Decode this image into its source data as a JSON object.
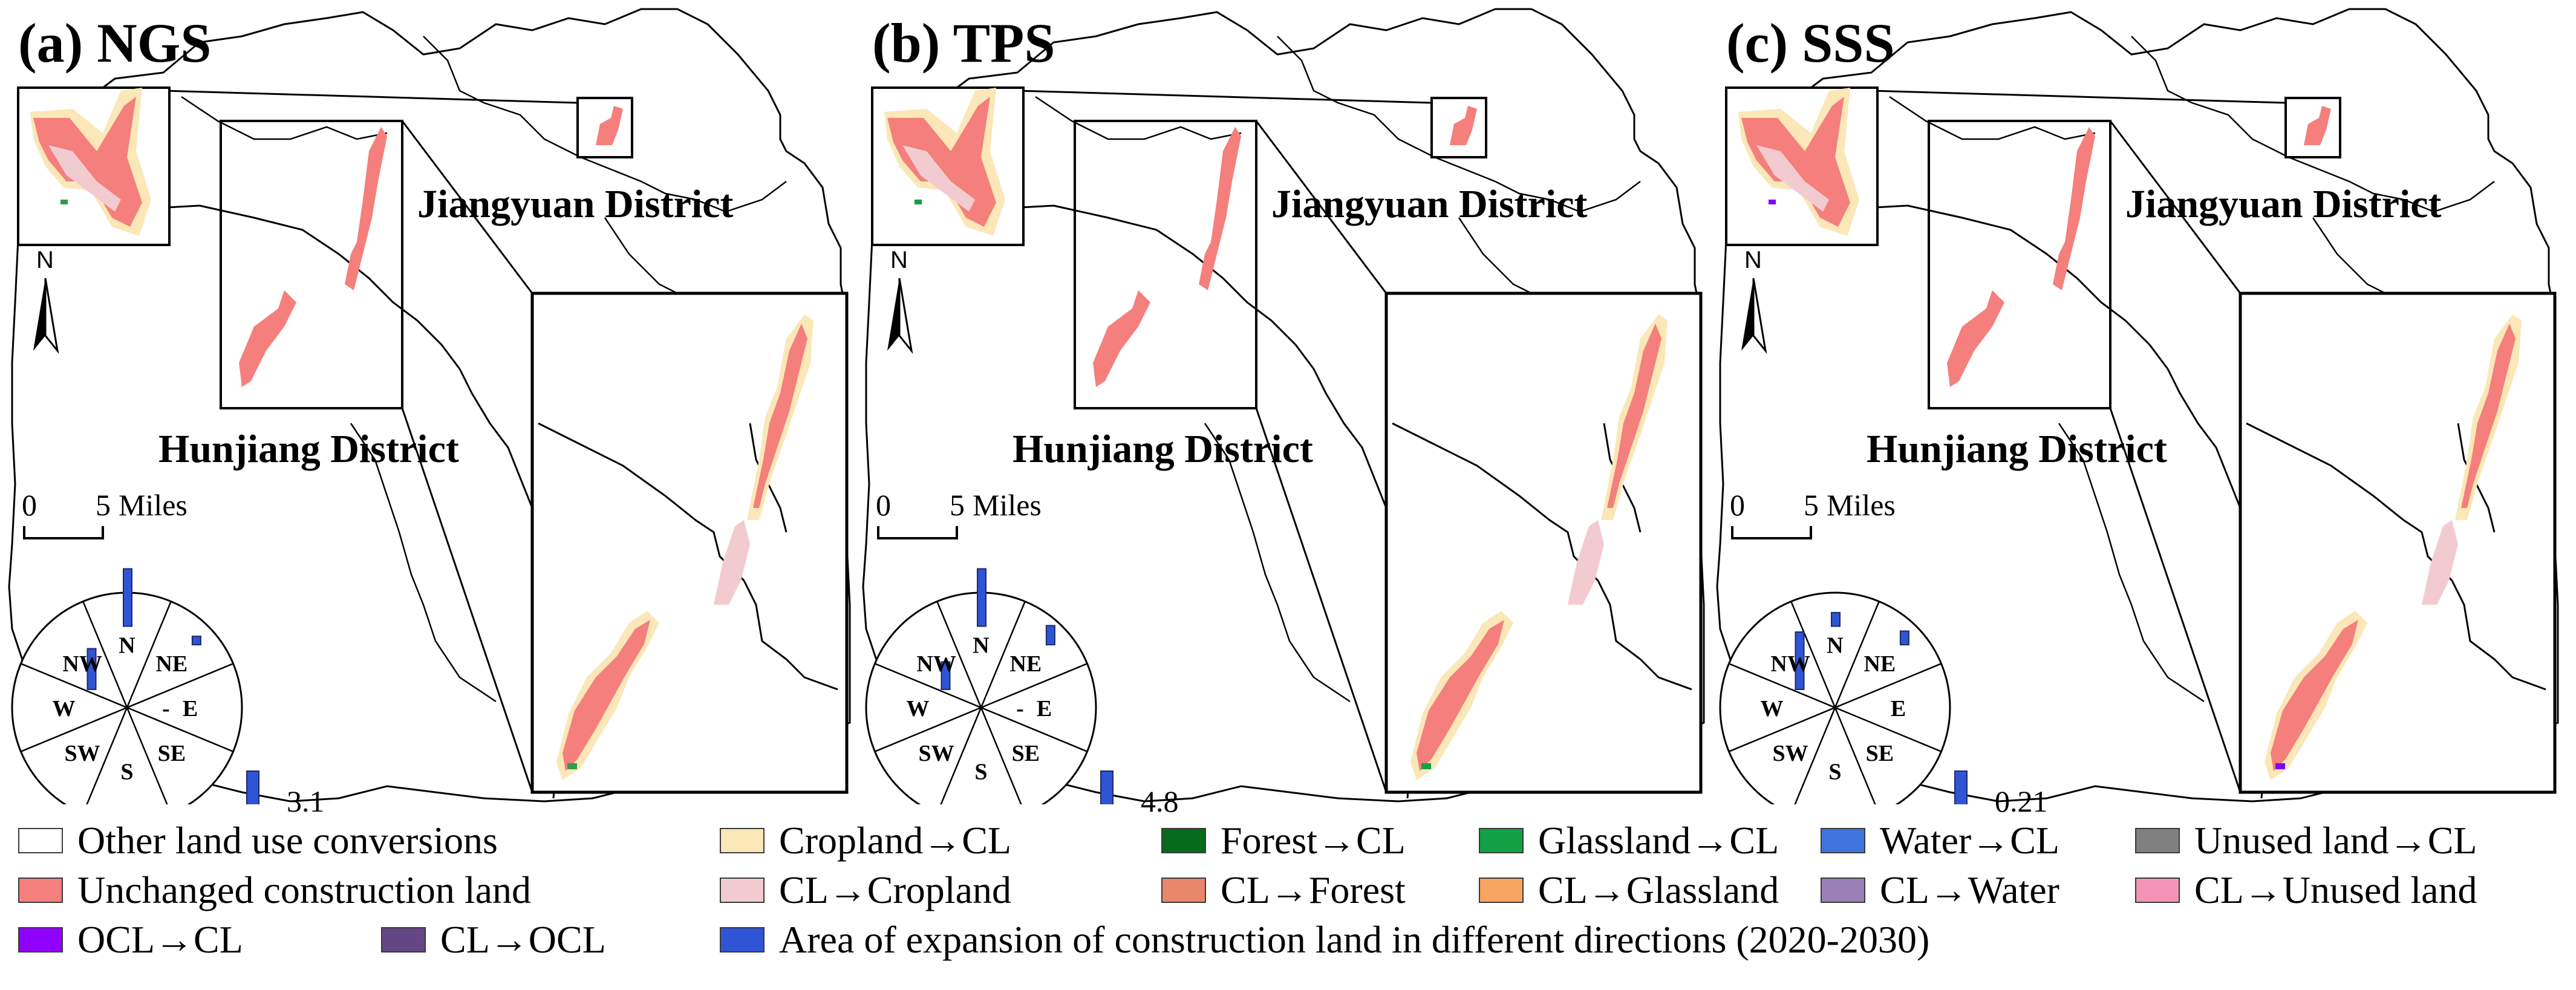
{
  "panels": [
    {
      "title": "(a) NGS",
      "district_top": "Jiangyuan District",
      "district_bottom": "Hunjiang District",
      "north_label": "N",
      "scale": {
        "zero": "0",
        "value": "5",
        "unit": "Miles"
      },
      "max_bar_label": "3.1",
      "rose_values": {
        "N": 3.1,
        "NE": 0.4,
        "E": 0.0,
        "SE": 0.0,
        "S": 0.0,
        "SW": 0.0,
        "W": 2.2,
        "NW": 0.0
      },
      "rose_markers": {
        "E": "-"
      },
      "patch_colors": {
        "unchanged": "#f47f7c",
        "new_cropland": "#fbe7b7",
        "to_cropland": "#f2cbd1",
        "accent": "#2f9e4a"
      }
    },
    {
      "title": "(b) TPS",
      "district_top": "Jiangyuan District",
      "district_bottom": "Hunjiang District",
      "north_label": "N",
      "scale": {
        "zero": "0",
        "value": "5",
        "unit": "Miles"
      },
      "max_bar_label": "4.8",
      "rose_values": {
        "N": 4.8,
        "NE": 1.6,
        "E": 0.0,
        "SE": 0.0,
        "S": 0.0,
        "SW": 0.0,
        "W": 2.3,
        "NW": 0.0
      },
      "rose_markers": {
        "E": "-"
      },
      "patch_colors": {
        "unchanged": "#f47f7c",
        "new_cropland": "#fbe7b7",
        "to_cropland": "#f2cbd1",
        "accent": "#10a244"
      }
    },
    {
      "title": "(c) SSS",
      "district_top": "Jiangyuan District",
      "district_bottom": "Hunjiang District",
      "north_label": "N",
      "scale": {
        "zero": "0",
        "value": "5",
        "unit": "Miles"
      },
      "max_bar_label": "0.21",
      "rose_values": {
        "N": 0.05,
        "NE": 0.05,
        "E": 0.0,
        "SE": 0.0,
        "S": 0.0,
        "SW": 0.0,
        "W": 0.21,
        "NW": 0.0
      },
      "rose_markers": {
        "E": ""
      },
      "patch_colors": {
        "unchanged": "#f47f7c",
        "new_cropland": "#fbe7b7",
        "to_cropland": "#f2cbd1",
        "accent": "#8000ff"
      }
    }
  ],
  "rose_directions": [
    "N",
    "NE",
    "E",
    "SE",
    "S",
    "SW",
    "W",
    "NW"
  ],
  "legend": [
    {
      "label": "Other land use conversions",
      "color": "#ffffff"
    },
    {
      "label": "Cropland→CL",
      "color": "#fbe7b7"
    },
    {
      "label": "Forest→CL",
      "color": "#056b1b"
    },
    {
      "label": "Glassland→CL",
      "color": "#10a244"
    },
    {
      "label": "Water→CL",
      "color": "#3f75dc"
    },
    {
      "label": "Unused land→CL",
      "color": "#808080"
    },
    {
      "label": "Unchanged construction land",
      "color": "#f47f7c"
    },
    {
      "label": "CL→Cropland",
      "color": "#f2cbd1"
    },
    {
      "label": "CL→Forest",
      "color": "#e8876b"
    },
    {
      "label": "CL→Glassland",
      "color": "#f8a561"
    },
    {
      "label": "CL→Water",
      "color": "#9a80b4"
    },
    {
      "label": "CL→Unused land",
      "color": "#f394b7"
    },
    {
      "label": "OCL→CL",
      "color": "#9000ff"
    },
    {
      "label": "CL→OCL",
      "color": "#654684"
    },
    {
      "label": "Area of expansion of construction land  in different directions (2020-2030)",
      "color": "#2f55d4"
    }
  ],
  "colors": {
    "bar": "#2f55d4",
    "boundary": "#000000"
  }
}
